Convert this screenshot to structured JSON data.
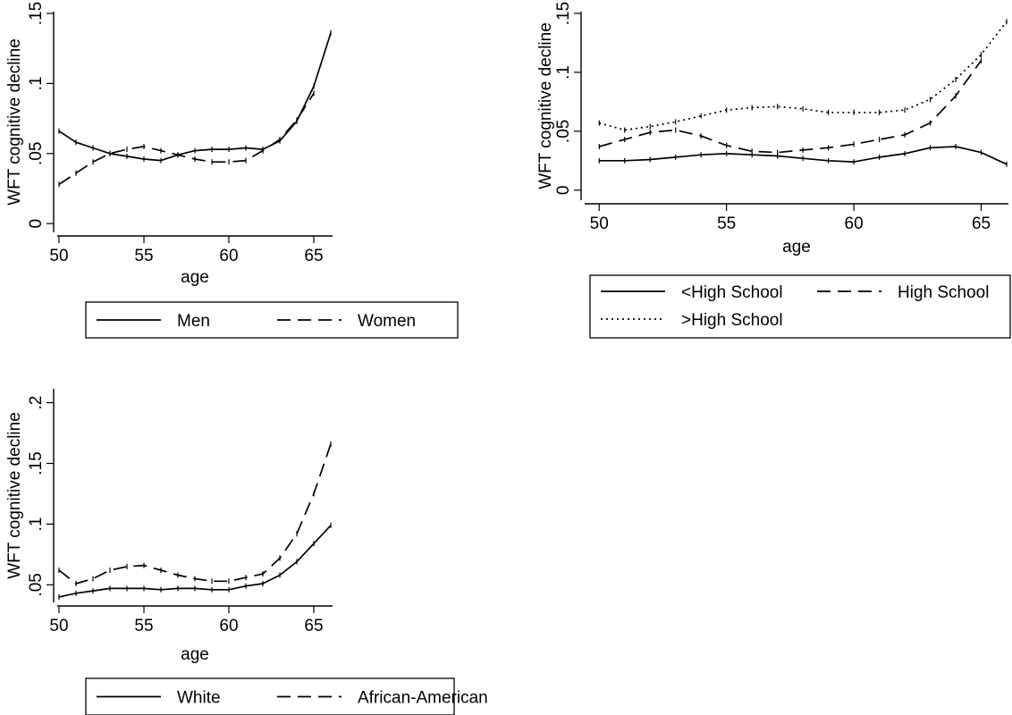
{
  "chart_data": [
    {
      "type": "line",
      "xlabel": "age",
      "ylabel": "WFT cognitive decline",
      "xlim": [
        50,
        66
      ],
      "ylim": [
        -0.005,
        0.15
      ],
      "x_ticks": [
        "50",
        "55",
        "60",
        "65"
      ],
      "y_ticks": [
        "0",
        ".05",
        ".1",
        ".15"
      ],
      "legend_rows": 1,
      "series": [
        {
          "name": "Men",
          "dash": "solid",
          "x": [
            50,
            51,
            52,
            53,
            54,
            55,
            56,
            57,
            58,
            59,
            60,
            61,
            62,
            63,
            64,
            65,
            66
          ],
          "y": [
            0.066,
            0.058,
            0.054,
            0.05,
            0.048,
            0.046,
            0.045,
            0.049,
            0.052,
            0.053,
            0.053,
            0.054,
            0.053,
            0.059,
            0.073,
            0.098,
            0.136
          ]
        },
        {
          "name": "Women",
          "dash": "long",
          "x": [
            50,
            51,
            52,
            53,
            54,
            55,
            56,
            57,
            58,
            59,
            60,
            61,
            62,
            63,
            64,
            65
          ],
          "y": [
            0.028,
            0.036,
            0.044,
            0.05,
            0.053,
            0.055,
            0.052,
            0.049,
            0.046,
            0.044,
            0.044,
            0.045,
            0.052,
            0.06,
            0.074,
            0.093
          ]
        }
      ]
    },
    {
      "type": "line",
      "xlabel": "age",
      "ylabel": "WFT cognitive decline",
      "xlim": [
        49.5,
        66
      ],
      "ylim": [
        -0.007,
        0.15
      ],
      "x_ticks": [
        "50",
        "55",
        "60",
        "65"
      ],
      "y_ticks": [
        "0",
        ".05",
        ".1",
        ".15"
      ],
      "legend_rows": 2,
      "series": [
        {
          "name": "<High School",
          "dash": "solid",
          "x": [
            50,
            51,
            52,
            53,
            54,
            55,
            56,
            57,
            58,
            59,
            60,
            61,
            62,
            63,
            64,
            65,
            66
          ],
          "y": [
            0.025,
            0.025,
            0.026,
            0.028,
            0.03,
            0.031,
            0.03,
            0.029,
            0.027,
            0.025,
            0.024,
            0.028,
            0.031,
            0.036,
            0.037,
            0.032,
            0.022
          ]
        },
        {
          "name": "High School",
          "dash": "long",
          "x": [
            50,
            51,
            52,
            53,
            54,
            55,
            56,
            57,
            58,
            59,
            60,
            61,
            62,
            63,
            64,
            65
          ],
          "y": [
            0.037,
            0.043,
            0.049,
            0.051,
            0.046,
            0.038,
            0.033,
            0.032,
            0.034,
            0.036,
            0.039,
            0.043,
            0.047,
            0.057,
            0.08,
            0.11
          ]
        },
        {
          "name": ">High School",
          "dash": "dot",
          "x": [
            50,
            51,
            52,
            53,
            54,
            55,
            56,
            57,
            58,
            59,
            60,
            61,
            62,
            63,
            64,
            65,
            66
          ],
          "y": [
            0.057,
            0.051,
            0.054,
            0.058,
            0.063,
            0.068,
            0.07,
            0.071,
            0.069,
            0.066,
            0.066,
            0.066,
            0.068,
            0.077,
            0.094,
            0.115,
            0.143
          ]
        }
      ]
    },
    {
      "type": "line",
      "xlabel": "age",
      "ylabel": "WFT cognitive decline",
      "xlim": [
        50,
        66
      ],
      "ylim": [
        0.037,
        0.21
      ],
      "x_ticks": [
        "50",
        "55",
        "60",
        "65"
      ],
      "y_ticks": [
        ".05",
        ".1",
        ".15",
        ".2"
      ],
      "legend_rows": 1,
      "series": [
        {
          "name": "White",
          "dash": "solid",
          "x": [
            50,
            51,
            52,
            53,
            54,
            55,
            56,
            57,
            58,
            59,
            60,
            61,
            62,
            63,
            64,
            65,
            66
          ],
          "y": [
            0.04,
            0.043,
            0.045,
            0.047,
            0.047,
            0.047,
            0.046,
            0.047,
            0.047,
            0.046,
            0.046,
            0.049,
            0.051,
            0.058,
            0.069,
            0.084,
            0.099
          ]
        },
        {
          "name": "African-American",
          "dash": "long",
          "x": [
            50,
            51,
            52,
            53,
            54,
            55,
            56,
            57,
            58,
            59,
            60,
            61,
            62,
            63,
            64,
            65,
            66
          ],
          "y": [
            0.062,
            0.051,
            0.055,
            0.062,
            0.065,
            0.066,
            0.062,
            0.058,
            0.055,
            0.053,
            0.053,
            0.056,
            0.059,
            0.072,
            0.092,
            0.125,
            0.166
          ]
        }
      ]
    }
  ]
}
